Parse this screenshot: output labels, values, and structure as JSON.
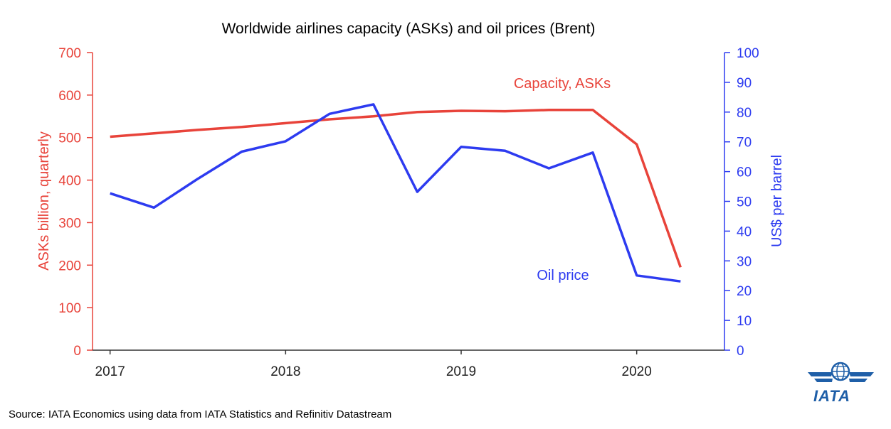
{
  "chart_data": {
    "type": "line",
    "title": "Worldwide airlines capacity (ASKs) and oil prices (Brent)",
    "x_ticks": [
      "2017",
      "2018",
      "2019",
      "2020"
    ],
    "x": [
      2017.0,
      2017.25,
      2017.5,
      2017.75,
      2018.0,
      2018.25,
      2018.5,
      2018.75,
      2019.0,
      2019.25,
      2019.5,
      2019.75,
      2020.0,
      2020.25
    ],
    "xlim": [
      2016.9,
      2020.5
    ],
    "left_axis": {
      "label": "ASKs billion, quarterly",
      "ylim": [
        0,
        700
      ],
      "ticks": [
        "0",
        "100",
        "200",
        "300",
        "400",
        "500",
        "600",
        "700"
      ],
      "color": "#e8433a"
    },
    "right_axis": {
      "label": "US$ per barrel",
      "ylim": [
        0,
        100
      ],
      "ticks": [
        "0",
        "10",
        "20",
        "30",
        "40",
        "50",
        "60",
        "70",
        "80",
        "90",
        "100"
      ],
      "color": "#2d3bf0"
    },
    "series": [
      {
        "name": "Capacity, ASKs",
        "axis": "left",
        "color": "#e8433a",
        "values": [
          502,
          510,
          518,
          525,
          534,
          543,
          550,
          560,
          563,
          562,
          565,
          565,
          484,
          195
        ]
      },
      {
        "name": "Oil price",
        "axis": "right",
        "color": "#2d3bf0",
        "values": [
          52.7,
          47.9,
          57.6,
          66.7,
          70.2,
          79.4,
          82.6,
          53.2,
          68.3,
          67.0,
          61.1,
          66.4,
          25.1,
          23.1
        ]
      }
    ],
    "grid": false
  },
  "footer": {
    "source": "Source: IATA Economics using data from IATA Statistics and Refinitiv Datastream",
    "logo_text": "IATA"
  }
}
